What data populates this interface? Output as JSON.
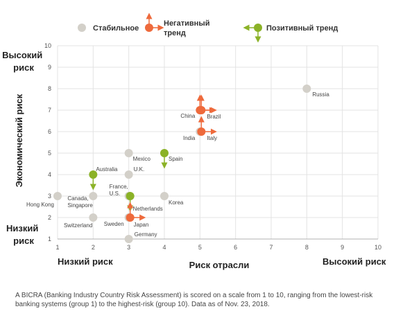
{
  "chart_data": {
    "type": "scatter",
    "xlim": [
      1,
      10
    ],
    "ylim": [
      1,
      10
    ],
    "x_ticks": [
      1,
      2,
      3,
      4,
      5,
      6,
      7,
      8,
      9,
      10
    ],
    "y_ticks": [
      1,
      2,
      3,
      4,
      5,
      6,
      7,
      8,
      9,
      10
    ],
    "xlabel": "Риск отрасли",
    "ylabel": "Экономический риск",
    "x_low_label": "Низкий риск",
    "x_high_label": "Высокий риск",
    "y_high_label": [
      "Высокий",
      "риск"
    ],
    "y_low_label": [
      "Низкий",
      "риск"
    ],
    "grid": true,
    "legend": {
      "position": "top",
      "items": [
        {
          "key": "stable",
          "label": "Стабильное"
        },
        {
          "key": "negative",
          "label": "Негативный тренд"
        },
        {
          "key": "positive",
          "label": "Позитивный тренд"
        }
      ]
    },
    "colors": {
      "stable": "#d3d0c9",
      "negative": "#ee6a3c",
      "positive": "#8bb227",
      "grid": "#e3e3e3",
      "axis": "#b0b0b0"
    },
    "points": [
      {
        "label": "Russia",
        "x": 8,
        "y": 8,
        "trend": "stable"
      },
      {
        "label": "China",
        "x": 5,
        "y": 7,
        "trend": "negative"
      },
      {
        "label": "Brazil",
        "x": 5,
        "y": 7,
        "trend": "negative"
      },
      {
        "label": "India",
        "x": 5,
        "y": 6,
        "trend": "stable"
      },
      {
        "label": "Italy",
        "x": 5,
        "y": 6,
        "trend": "negative"
      },
      {
        "label": "Mexico",
        "x": 3,
        "y": 5,
        "trend": "stable"
      },
      {
        "label": "Spain",
        "x": 4,
        "y": 5,
        "trend": "positive"
      },
      {
        "label": "Australia",
        "x": 2,
        "y": 4,
        "trend": "positive"
      },
      {
        "label": "U.K.",
        "x": 3,
        "y": 4,
        "trend": "stable"
      },
      {
        "label": "Hong Kong",
        "x": 1,
        "y": 3,
        "trend": "stable"
      },
      {
        "label": "Canada, Singapore",
        "x": 2,
        "y": 3,
        "trend": "stable"
      },
      {
        "label": "France, U.S.",
        "x": 3,
        "y": 3,
        "trend": "stable"
      },
      {
        "label": "Netherlands",
        "x": 3,
        "y": 3,
        "trend": "positive"
      },
      {
        "label": "Korea",
        "x": 4,
        "y": 3,
        "trend": "stable"
      },
      {
        "label": "Switzerland",
        "x": 2,
        "y": 2,
        "trend": "stable"
      },
      {
        "label": "Sweden",
        "x": 3,
        "y": 2,
        "trend": "stable"
      },
      {
        "label": "Japan",
        "x": 3,
        "y": 2,
        "trend": "negative"
      },
      {
        "label": "Germany",
        "x": 3,
        "y": 1,
        "trend": "stable"
      }
    ]
  },
  "footnote": "A BICRA (Banking Industry Country Risk Assessment) is scored on a scale from 1 to 10, ranging from the  lowest-risk banking systems (group 1) to the highest-risk (group 10). Data as of Nov. 23, 2018."
}
